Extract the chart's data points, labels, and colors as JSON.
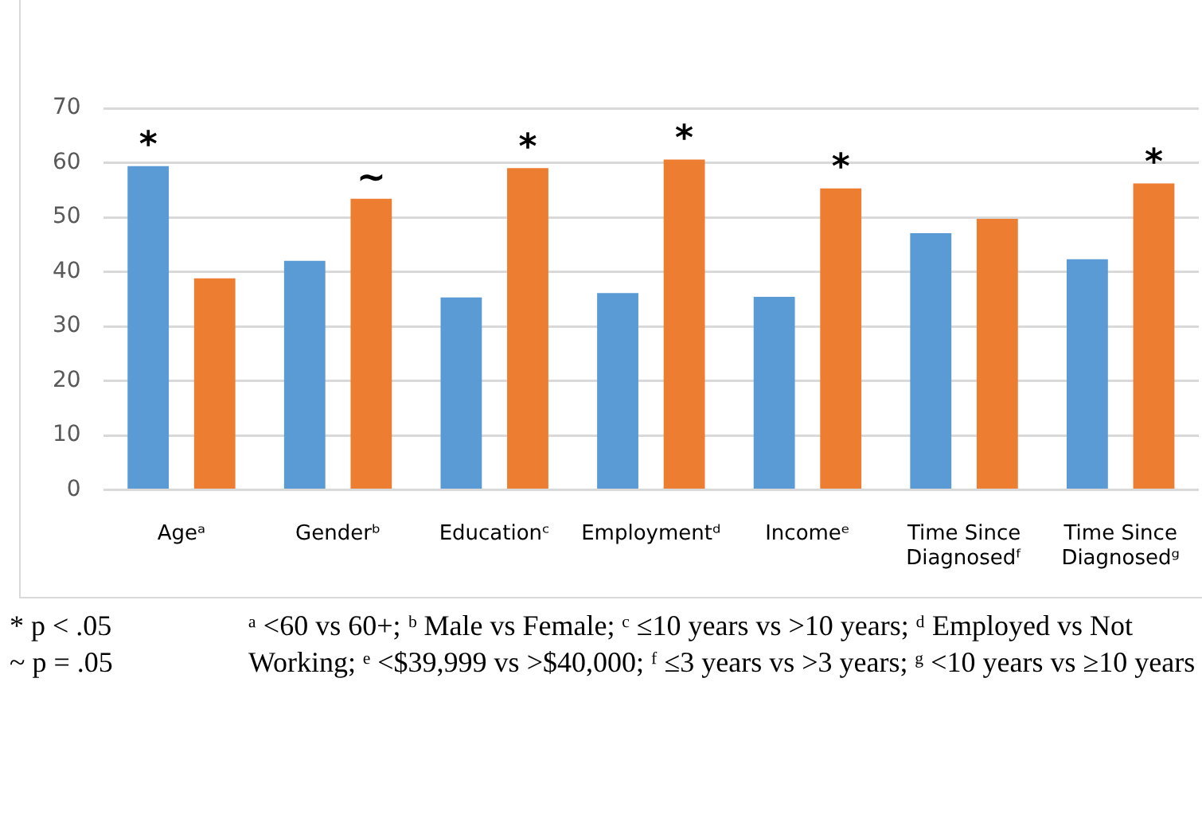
{
  "chart_data": {
    "type": "bar",
    "categories": [
      "Ageᵃ",
      "Genderᵇ",
      "Educationᶜ",
      "Employmentᵈ",
      "Incomeᵉ",
      "Time Since Diagnosedᶠ",
      "Time Since Diagnosedᵍ"
    ],
    "series": [
      {
        "color": "#5b9bd5",
        "values": [
          59.4,
          42.0,
          35.3,
          36.1,
          35.4,
          47.1,
          42.3
        ],
        "value_labels": [
          "*",
          null,
          null,
          null,
          null,
          null,
          null
        ]
      },
      {
        "color": "#ed7d31",
        "values": [
          38.8,
          53.4,
          59.0,
          60.6,
          55.3,
          49.7,
          56.2
        ],
        "value_labels": [
          null,
          "~",
          "*",
          "*",
          "*",
          null,
          "*"
        ]
      }
    ],
    "ylim": [
      0,
      70
    ],
    "yticks": [
      0,
      10,
      20,
      30,
      40,
      50,
      60,
      70
    ],
    "grid": "y",
    "legend": false,
    "annotations": [
      "* p < .05",
      "~ p = .05",
      "ᵃ <60 vs 60+; ᵇ Male vs Female; ᶜ ≤10 years vs >10 years; ᵈ Employed vs Not Working; ᵉ <$39,999 vs >$40,000; ᶠ ≤3 years vs >3 years; ᵍ <10 years vs ≥10 years"
    ]
  }
}
